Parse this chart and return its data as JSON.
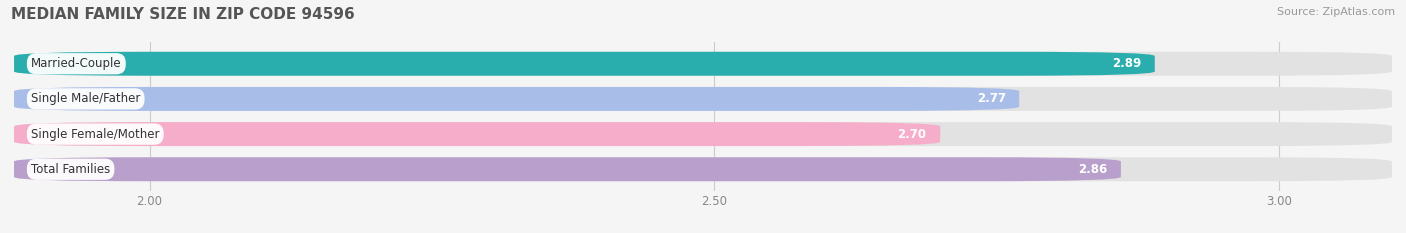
{
  "title": "MEDIAN FAMILY SIZE IN ZIP CODE 94596",
  "source": "Source: ZipAtlas.com",
  "categories": [
    "Married-Couple",
    "Single Male/Father",
    "Single Female/Mother",
    "Total Families"
  ],
  "values": [
    2.89,
    2.77,
    2.7,
    2.86
  ],
  "bar_colors": [
    "#29AEAD",
    "#A8BDE8",
    "#F5ADCA",
    "#B89FCC"
  ],
  "x_min": 1.88,
  "x_max": 3.1,
  "x_ticks": [
    2.0,
    2.5,
    3.0
  ],
  "tick_labels": [
    "2.00",
    "2.50",
    "3.00"
  ],
  "background_color": "#f5f5f5",
  "bar_bg_color": "#e2e2e2",
  "title_fontsize": 11,
  "source_fontsize": 8,
  "label_fontsize": 8.5,
  "value_fontsize": 8.5,
  "tick_fontsize": 8.5,
  "bar_height": 0.68,
  "bar_spacing": 1.0
}
